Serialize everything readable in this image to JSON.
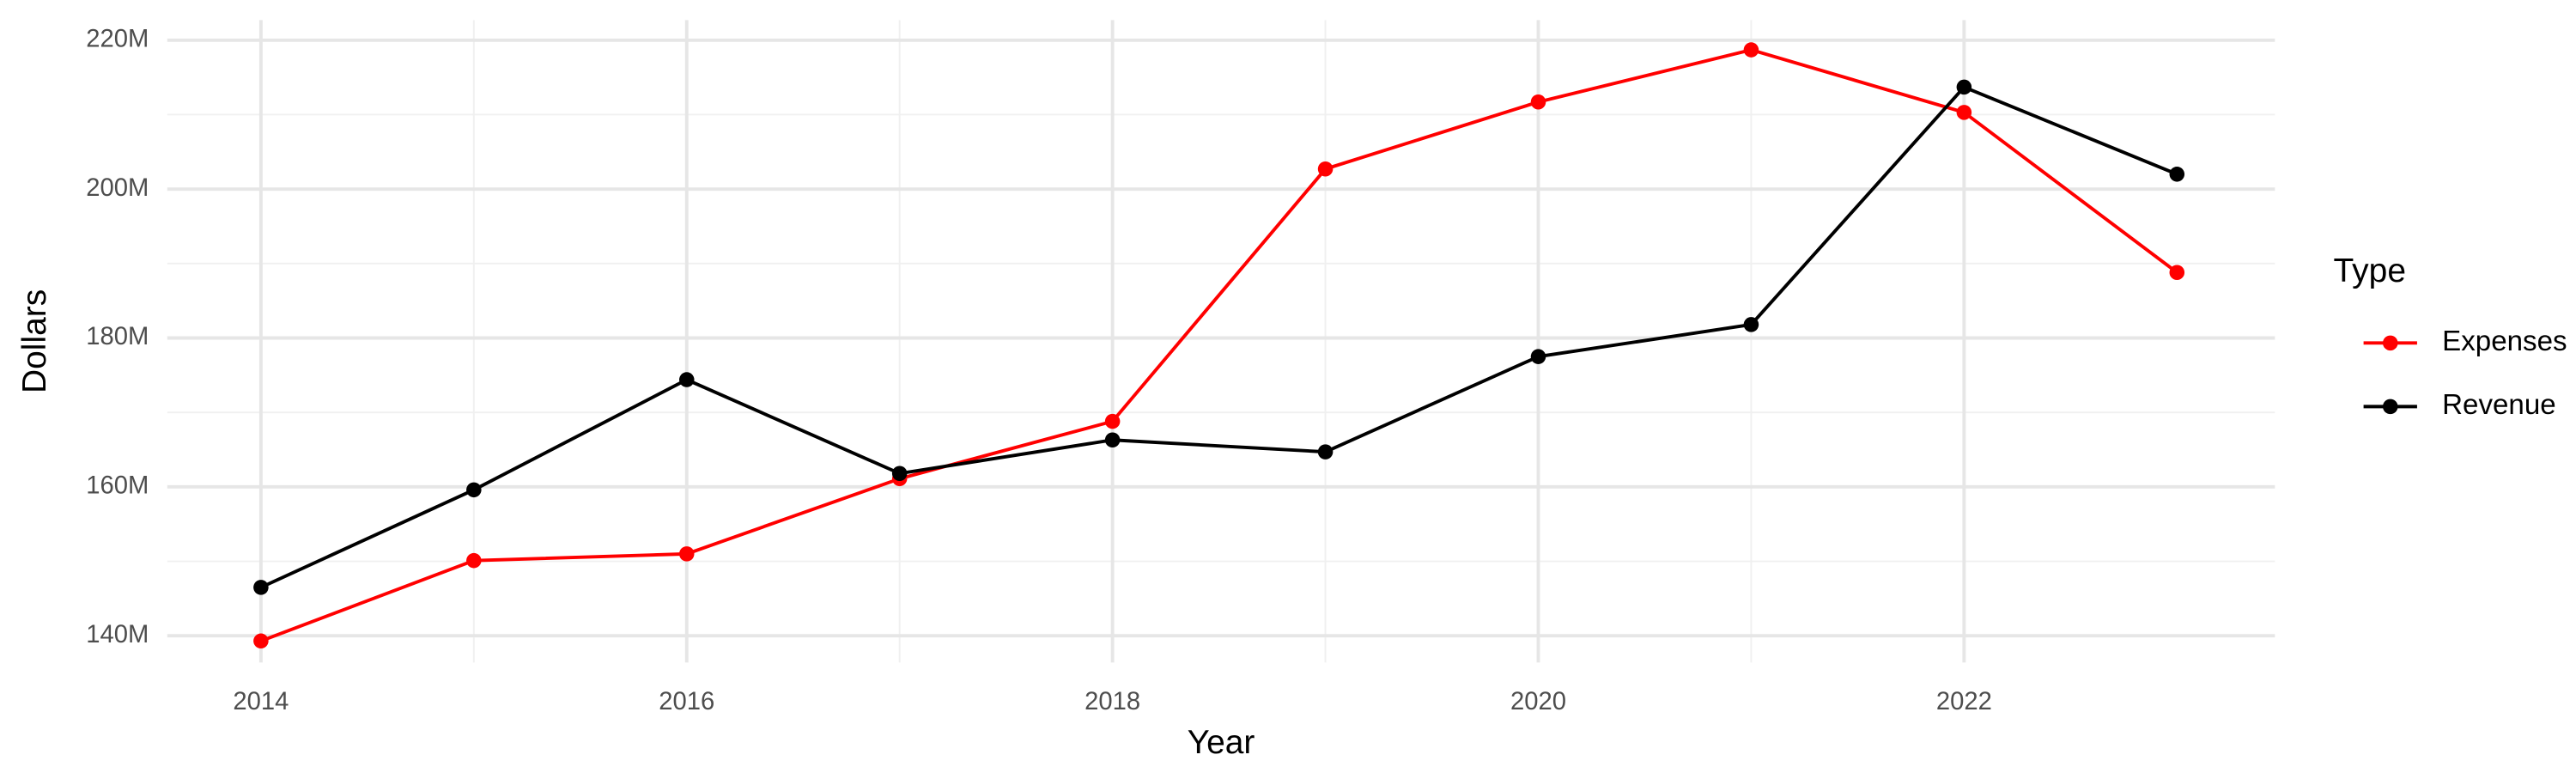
{
  "chart_data": {
    "type": "line",
    "x_label": "Year",
    "y_label": "Dollars",
    "legend_title": "Type",
    "x": [
      2014,
      2015,
      2016,
      2017,
      2018,
      2019,
      2020,
      2021,
      2022,
      2023
    ],
    "series": [
      {
        "name": "Expenses",
        "color": "#ff0000",
        "values": [
          139300000,
          150100000,
          151000000,
          161100000,
          168800000,
          202700000,
          211700000,
          218700000,
          210300000,
          188800000
        ]
      },
      {
        "name": "Revenue",
        "color": "#000000",
        "values": [
          146500000,
          159600000,
          174400000,
          161800000,
          166300000,
          164700000,
          177500000,
          181800000,
          213700000,
          202000000
        ]
      }
    ],
    "xlim": [
      2013.56,
      2023.46
    ],
    "xticks": [
      2014,
      2016,
      2018,
      2020,
      2022
    ],
    "ylim": [
      136400000,
      222700000
    ],
    "yticks": [
      {
        "value": 140000000,
        "label": "140M"
      },
      {
        "value": 160000000,
        "label": "160M"
      },
      {
        "value": 180000000,
        "label": "180M"
      },
      {
        "value": 200000000,
        "label": "200M"
      },
      {
        "value": 220000000,
        "label": "220M"
      }
    ],
    "grid": true,
    "legend": "right"
  }
}
